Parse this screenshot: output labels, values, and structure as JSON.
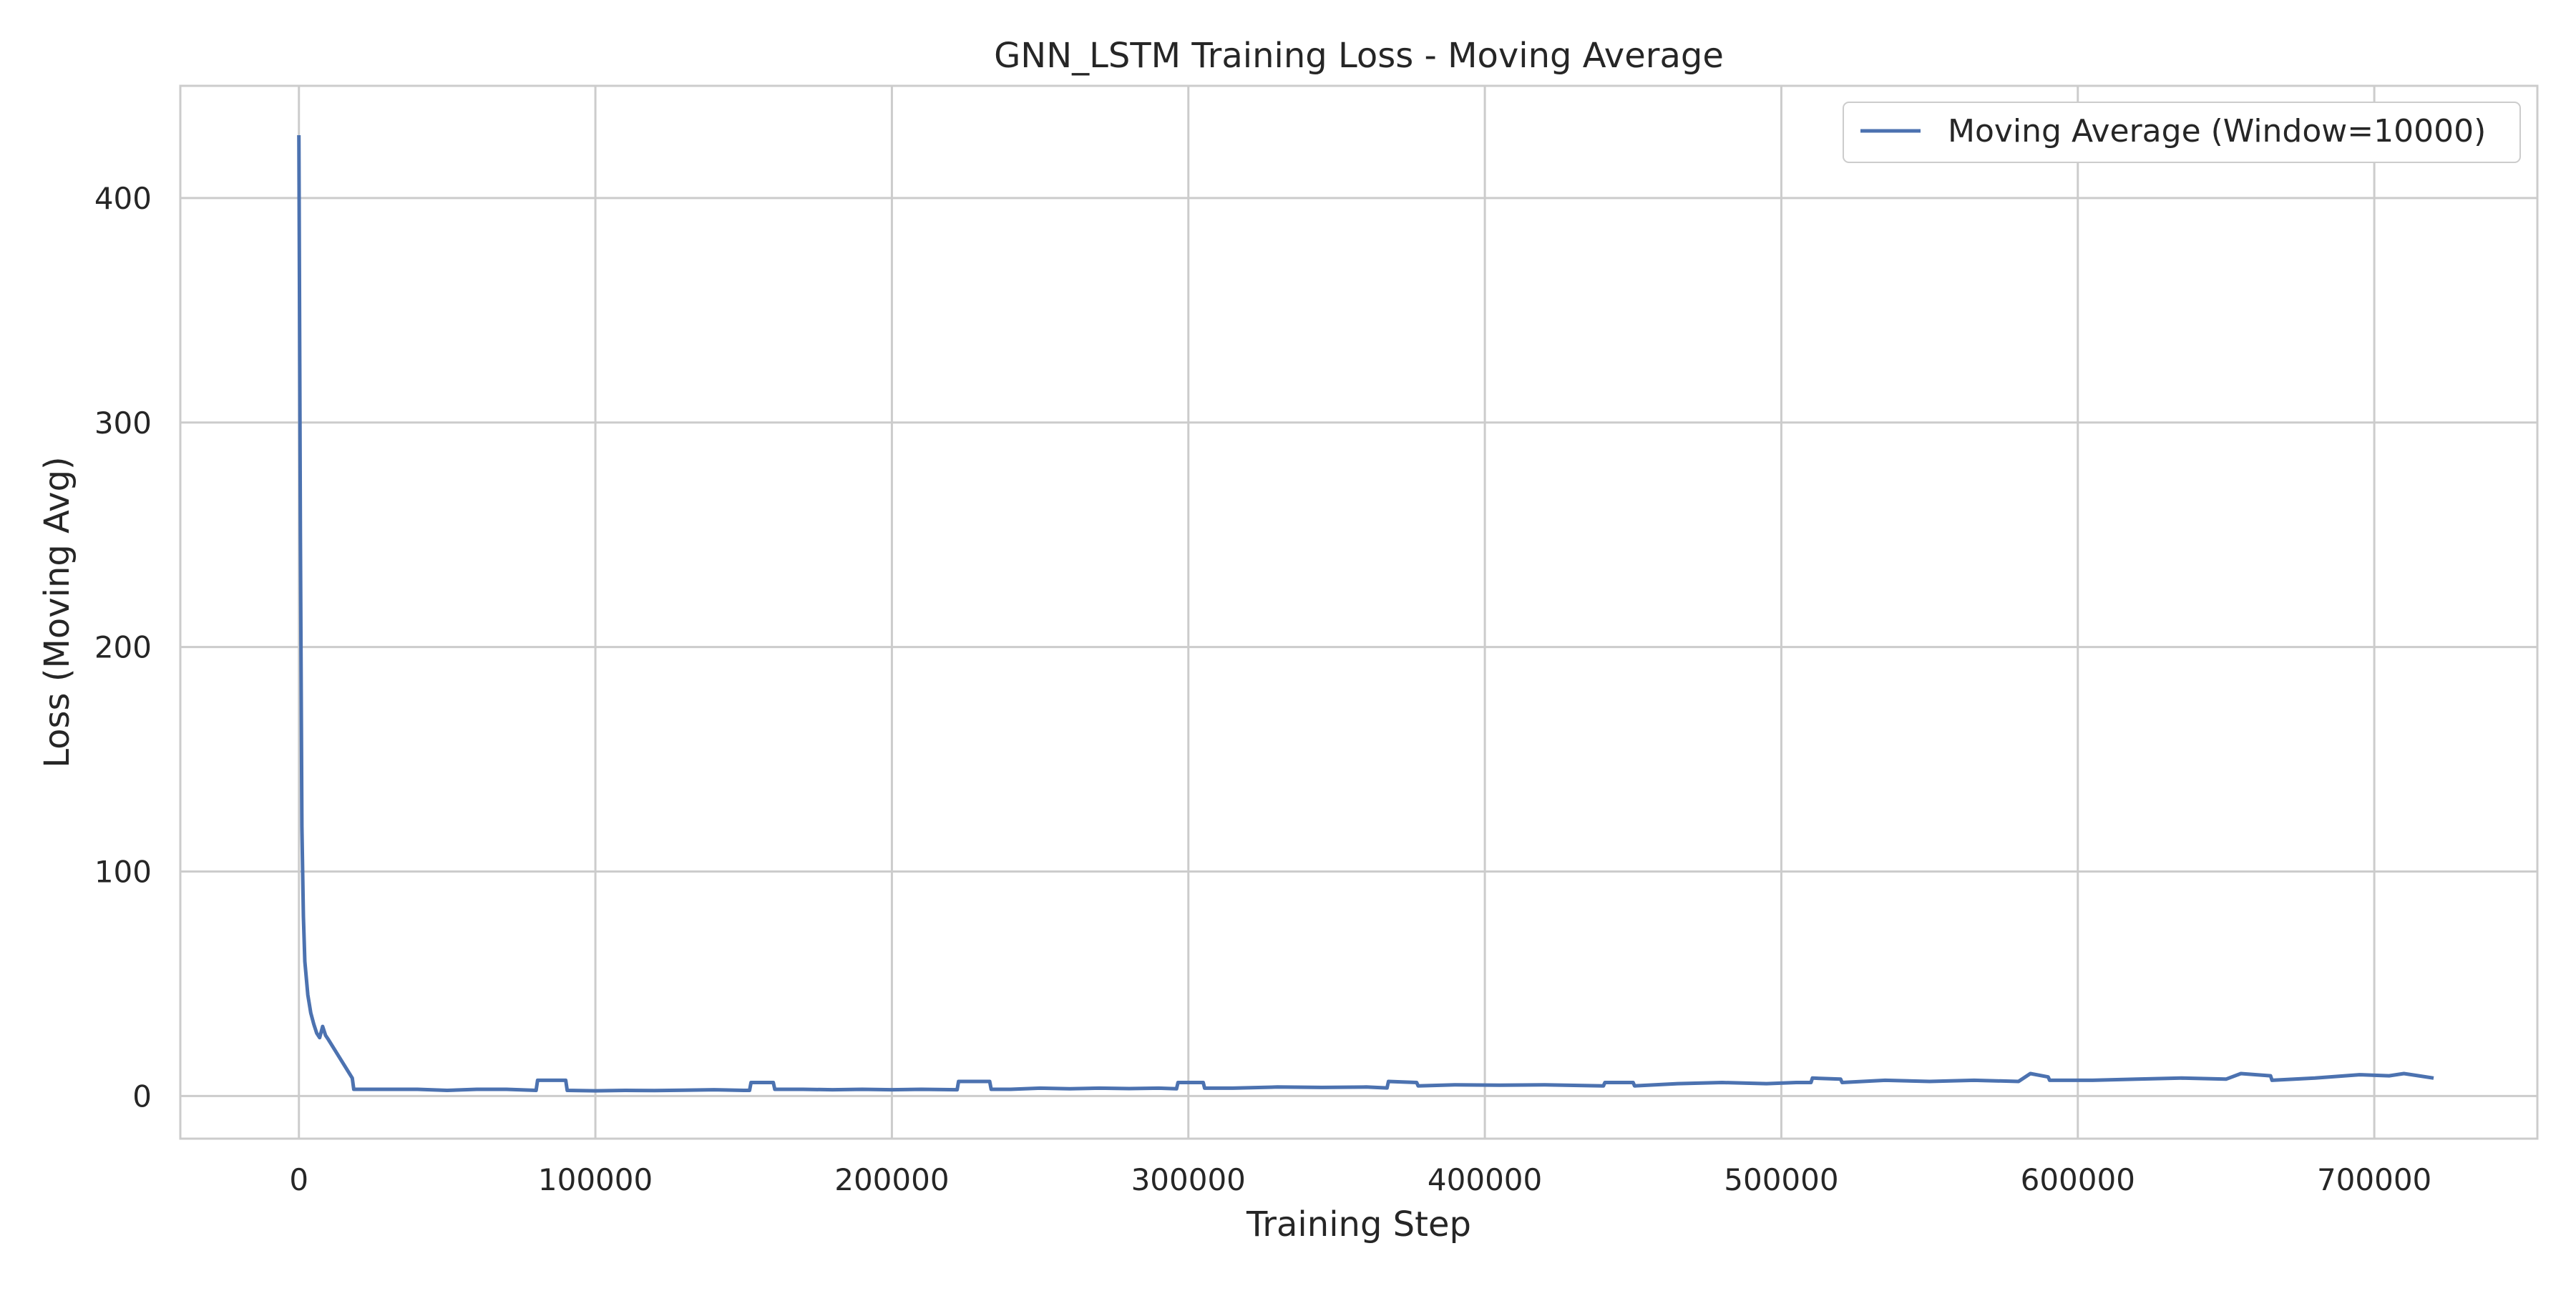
{
  "chart_data": {
    "type": "line",
    "title": "GNN_LSTM Training Loss - Moving Average",
    "xlabel": "Training Step",
    "ylabel": "Loss (Moving Avg)",
    "xlim": [
      -40000,
      755000
    ],
    "ylim": [
      -19,
      450
    ],
    "xticks": [
      0,
      100000,
      200000,
      300000,
      400000,
      500000,
      600000,
      700000
    ],
    "yticks": [
      0,
      100,
      200,
      300,
      400
    ],
    "grid": true,
    "legend_position": "top-right",
    "colors": {
      "line": "#4c72b0",
      "grid": "#cccccc",
      "frame": "#cccccc"
    },
    "series": [
      {
        "name": "Moving Average (Window=10000)",
        "x": [
          0,
          500,
          1000,
          1500,
          2000,
          3000,
          4000,
          5000,
          6000,
          7000,
          8000,
          9000,
          10000,
          18000,
          18500,
          30000,
          40000,
          50000,
          60000,
          70000,
          80000,
          80500,
          90000,
          90500,
          100000,
          110000,
          120000,
          130000,
          140000,
          150000,
          152000,
          152500,
          160000,
          160500,
          170000,
          180000,
          190000,
          200000,
          210000,
          222000,
          222500,
          233000,
          233500,
          240000,
          250000,
          260000,
          270000,
          280000,
          290000,
          296000,
          296500,
          305000,
          305500,
          315000,
          330000,
          345000,
          360000,
          367000,
          367500,
          377000,
          377500,
          390000,
          405000,
          420000,
          440000,
          440500,
          450000,
          450500,
          465000,
          480000,
          495000,
          505000,
          510000,
          510500,
          520000,
          520500,
          535000,
          550000,
          565000,
          580000,
          584000,
          590000,
          590500,
          605000,
          620000,
          635000,
          650000,
          655000,
          665000,
          665500,
          680000,
          695000,
          705000,
          710000,
          715000,
          720000
        ],
        "y": [
          428,
          250,
          120,
          80,
          60,
          45,
          37,
          32,
          28,
          26,
          31,
          27,
          25,
          8,
          3,
          3,
          3,
          2.5,
          3,
          3,
          2.5,
          7,
          7,
          2.5,
          2.3,
          2.5,
          2.4,
          2.6,
          2.8,
          2.5,
          2.5,
          6,
          6,
          3,
          3,
          2.8,
          3,
          2.8,
          3,
          2.8,
          6.5,
          6.5,
          3,
          3,
          3.5,
          3.2,
          3.5,
          3.3,
          3.5,
          3.2,
          6,
          6,
          3.5,
          3.5,
          4,
          3.8,
          4,
          3.6,
          6.5,
          6,
          4.5,
          5,
          4.8,
          5,
          4.5,
          6,
          6,
          4.5,
          5.5,
          6,
          5.5,
          6,
          6,
          8,
          7.5,
          6,
          7,
          6.5,
          7,
          6.5,
          10,
          8.5,
          7,
          7,
          7.5,
          8,
          7.5,
          10,
          9,
          7,
          8,
          9.5,
          9,
          10,
          9,
          8
        ]
      }
    ]
  }
}
